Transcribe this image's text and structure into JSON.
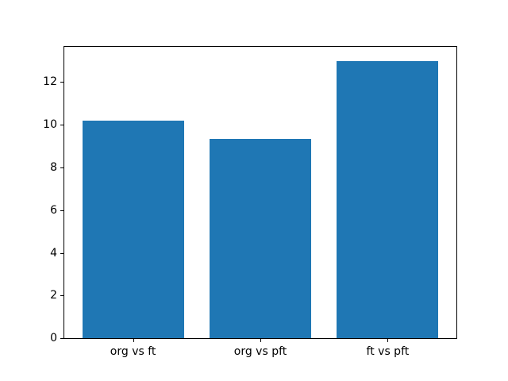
{
  "chart_data": {
    "type": "bar",
    "categories": [
      "org vs ft",
      "org vs pft",
      "ft vs pft"
    ],
    "values": [
      10.2,
      9.35,
      13.0
    ],
    "title": "",
    "xlabel": "",
    "ylabel": "",
    "yticks": [
      0,
      2,
      4,
      6,
      8,
      10,
      12
    ],
    "ylim": [
      0,
      13.65
    ],
    "xlim": [
      -0.54,
      2.54
    ],
    "bar_width": 0.8,
    "bar_color": "#1f77b4",
    "spine_color": "#000000",
    "text_color": "#000000",
    "grid": false,
    "legend_position": "none"
  }
}
